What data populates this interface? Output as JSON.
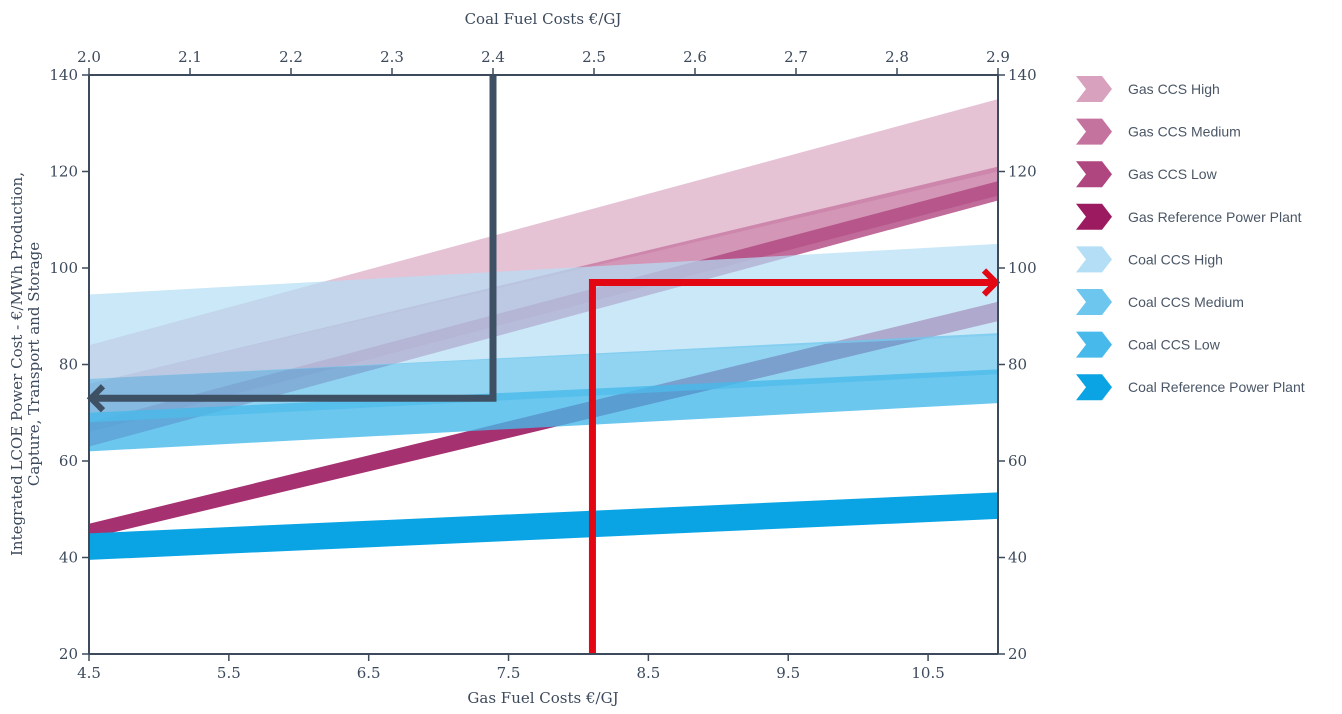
{
  "chart_data": {
    "type": "area",
    "title": "",
    "axes": {
      "bottom": {
        "label": "Gas Fuel Costs €/GJ",
        "range": [
          4.5,
          11.0
        ],
        "ticks": [
          4.5,
          5.5,
          6.5,
          7.5,
          8.5,
          9.5,
          10.5
        ],
        "tick_labels": [
          "4.5",
          "5.5",
          "6.5",
          "7.5",
          "8.5",
          "9.5",
          "10.5"
        ]
      },
      "top": {
        "label": "Coal Fuel Costs €/GJ",
        "range": [
          2.0,
          2.9
        ],
        "ticks": [
          2.0,
          2.1,
          2.2,
          2.3,
          2.4,
          2.5,
          2.6,
          2.7,
          2.8,
          2.9
        ],
        "tick_labels": [
          "2.0",
          "2.1",
          "2.2",
          "2.3",
          "2.4",
          "2.5",
          "2.6",
          "2.7",
          "2.8",
          "2.9"
        ]
      },
      "left": {
        "label_lines": [
          "Integrated LCOE Power  Cost - €/MWh Production,",
          "Capture, Transport and Storage"
        ],
        "range": [
          20,
          140
        ],
        "ticks": [
          20,
          40,
          60,
          80,
          100,
          120,
          140
        ],
        "tick_labels": [
          "20",
          "40",
          "60",
          "80",
          "100",
          "120",
          "140"
        ]
      },
      "right": {
        "range": [
          20,
          140
        ],
        "ticks": [
          20,
          40,
          60,
          80,
          100,
          120,
          140
        ],
        "tick_labels": [
          "20",
          "40",
          "60",
          "80",
          "100",
          "120",
          "140"
        ]
      }
    },
    "grid": false,
    "legend_position": "right",
    "series": [
      {
        "name": "Gas CCS High",
        "x_axis": "bottom",
        "x": [
          4.5,
          11.0
        ],
        "low": [
          76,
          120
        ],
        "high": [
          84,
          135
        ],
        "color": "#d8a2bf",
        "opacity": 0.65
      },
      {
        "name": "Gas CCS Medium",
        "x_axis": "bottom",
        "x": [
          4.5,
          11.0
        ],
        "low": [
          66,
          115
        ],
        "high": [
          76,
          121
        ],
        "color": "#c4739e",
        "opacity": 0.75
      },
      {
        "name": "Gas CCS Low",
        "x_axis": "bottom",
        "x": [
          4.5,
          11.0
        ],
        "low": [
          63,
          114
        ],
        "high": [
          68,
          118
        ],
        "color": "#b0467f",
        "opacity": 0.8
      },
      {
        "name": "Gas Reference Power Plant",
        "x_axis": "bottom",
        "x": [
          4.5,
          11.0
        ],
        "low": [
          44,
          89
        ],
        "high": [
          47,
          93
        ],
        "color": "#9c1b60",
        "opacity": 0.9
      },
      {
        "name": "Coal CCS High",
        "x_axis": "top",
        "x": [
          2.0,
          2.9
        ],
        "low": [
          77,
          86
        ],
        "high": [
          94.5,
          105
        ],
        "color": "#b3def5",
        "opacity": 0.7
      },
      {
        "name": "Coal CCS Medium",
        "x_axis": "top",
        "x": [
          2.0,
          2.9
        ],
        "low": [
          68,
          78
        ],
        "high": [
          77,
          86.5
        ],
        "color": "#6cc6ee",
        "opacity": 0.75
      },
      {
        "name": "Coal CCS Low",
        "x_axis": "top",
        "x": [
          2.0,
          2.9
        ],
        "low": [
          62,
          72
        ],
        "high": [
          70,
          79
        ],
        "color": "#47b9ea",
        "opacity": 0.8
      },
      {
        "name": "Coal Reference Power Plant",
        "x_axis": "top",
        "x": [
          2.0,
          2.9
        ],
        "low": [
          39.5,
          48
        ],
        "high": [
          45,
          53.5
        ],
        "color": "#0aa4e4",
        "opacity": 1.0
      }
    ],
    "annotations": [
      {
        "name": "coal-price-arrow",
        "color": "#3e5064",
        "axis": "top",
        "points": [
          [
            2.4,
            140
          ],
          [
            2.4,
            73
          ],
          [
            2.0,
            73
          ]
        ]
      },
      {
        "name": "gas-price-arrow",
        "color": "#e30613",
        "axis": "bottom",
        "points": [
          [
            8.1,
            20
          ],
          [
            8.1,
            97
          ],
          [
            11.0,
            97
          ]
        ]
      }
    ]
  },
  "colors": {
    "axis": "#3d4a5c",
    "coal_arrow": "#3e5064",
    "gas_arrow": "#e30613"
  }
}
